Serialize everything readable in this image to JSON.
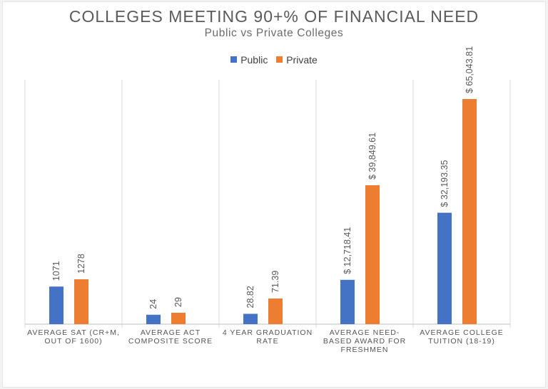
{
  "chart_data": {
    "type": "bar",
    "title": "COLLEGES MEETING 90+% OF FINANCIAL NEED",
    "subtitle": "Public vs Private Colleges",
    "legend_position": "top",
    "grid": false,
    "categories": [
      [
        "AVERAGE SAT (CR+M,",
        "OUT OF 1600)"
      ],
      [
        "AVERAGE ACT",
        "COMPOSITE SCORE"
      ],
      [
        "4 YEAR GRADUATION",
        "RATE"
      ],
      [
        "AVERAGE NEED-",
        "BASED AWARD FOR",
        "FRESHMEN"
      ],
      [
        "AVERAGE COLLEGE",
        "TUITION (18-19)"
      ]
    ],
    "series": [
      {
        "name": "Public",
        "color": "#4472c4",
        "values": [
          1071,
          24,
          28.82,
          12718.41,
          32193.35
        ],
        "labels": [
          "1071",
          "24",
          "28.82",
          "$ 12,718.41",
          "$ 32,193.35"
        ]
      },
      {
        "name": "Private",
        "color": "#ed7d31",
        "values": [
          1278,
          29,
          71.39,
          39849.61,
          65043.81
        ],
        "labels": [
          "1278",
          "29",
          "71.39",
          "$ 39,849.61",
          "$ 65,043.81"
        ]
      }
    ],
    "axis_color": "#d9d9d9"
  }
}
